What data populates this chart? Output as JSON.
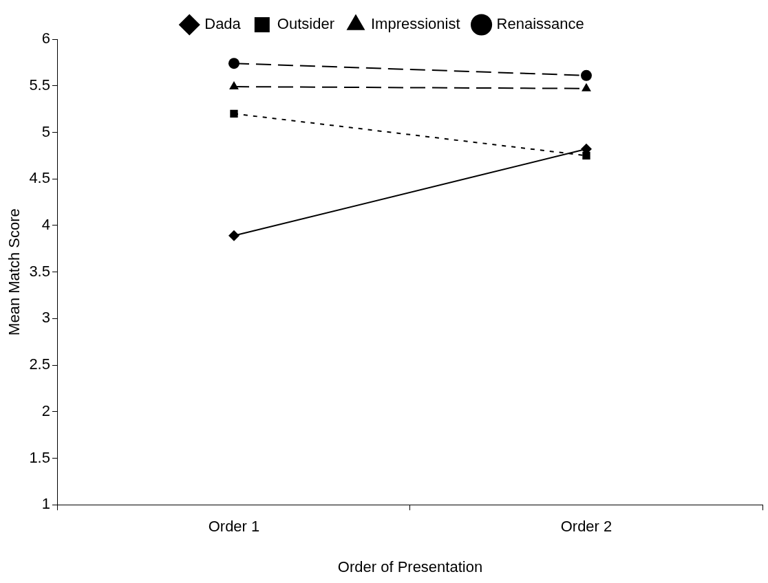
{
  "chart_data": {
    "type": "line",
    "xlabel": "Order of Presentation",
    "ylabel": "Mean Match Score",
    "categories": [
      "Order 1",
      "Order 2"
    ],
    "series": [
      {
        "name": "Dada",
        "color": "#000000",
        "values": [
          3.89,
          4.82
        ],
        "marker": "diamond",
        "line_style": "solid"
      },
      {
        "name": "Outsider",
        "color": "#000000",
        "values": [
          5.2,
          4.75
        ],
        "marker": "square",
        "line_style": "dotted"
      },
      {
        "name": "Impressionist",
        "color": "#000000",
        "values": [
          5.49,
          5.47
        ],
        "marker": "triangle",
        "line_style": "dashed"
      },
      {
        "name": "Renaissance",
        "color": "#000000",
        "values": [
          5.74,
          5.61
        ],
        "marker": "circle",
        "line_style": "dashed"
      }
    ],
    "ylim": [
      1,
      6
    ],
    "yticks": [
      1,
      1.5,
      2,
      2.5,
      3,
      3.5,
      4,
      4.5,
      5,
      5.5,
      6
    ],
    "grid": false,
    "legend": "top"
  }
}
